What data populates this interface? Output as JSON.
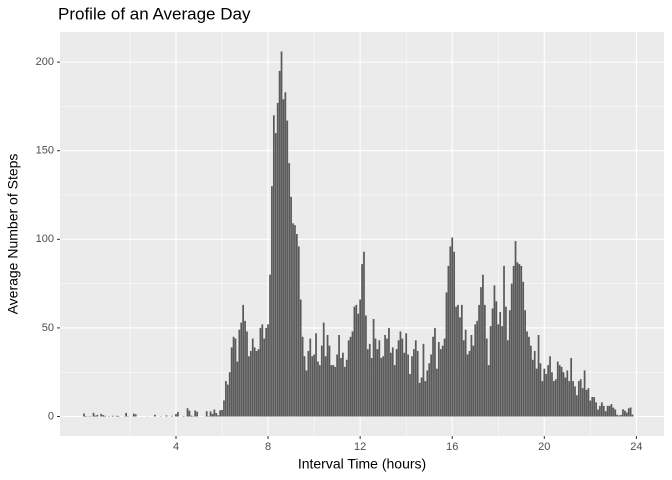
{
  "chart_data": {
    "type": "bar",
    "title": "Profile of an Average Day",
    "x_label": "Interval Time (hours)",
    "y_label": "Average Number of Steps",
    "color": "#595959",
    "grid": true,
    "xlim": [
      -1.04,
      25.2
    ],
    "xticks": [
      4,
      8,
      12,
      16,
      20,
      24
    ],
    "ylim": [
      -11,
      217
    ],
    "yticks": [
      0,
      50,
      100,
      150,
      200
    ],
    "x": [
      0,
      0.0833,
      0.1667,
      0.25,
      0.3333,
      0.4167,
      0.5,
      0.5833,
      0.6667,
      0.75,
      0.8333,
      0.9167,
      1,
      1.0833,
      1.1667,
      1.25,
      1.3333,
      1.4167,
      1.5,
      1.5833,
      1.6667,
      1.75,
      1.8333,
      1.9167,
      2,
      2.0833,
      2.1667,
      2.25,
      2.3333,
      2.4167,
      2.5,
      2.5833,
      2.6667,
      2.75,
      2.8333,
      2.9167,
      3,
      3.0833,
      3.1667,
      3.25,
      3.3333,
      3.4167,
      3.5,
      3.5833,
      3.6667,
      3.75,
      3.8333,
      3.9167,
      4,
      4.0833,
      4.1667,
      4.25,
      4.3333,
      4.4167,
      4.5,
      4.5833,
      4.6667,
      4.75,
      4.8333,
      4.9167,
      5,
      5.0833,
      5.1667,
      5.25,
      5.3333,
      5.4167,
      5.5,
      5.5833,
      5.6667,
      5.75,
      5.8333,
      5.9167,
      6,
      6.0833,
      6.1667,
      6.25,
      6.3333,
      6.4167,
      6.5,
      6.5833,
      6.6667,
      6.75,
      6.8333,
      6.9167,
      7,
      7.0833,
      7.1667,
      7.25,
      7.3333,
      7.4167,
      7.5,
      7.5833,
      7.6667,
      7.75,
      7.8333,
      7.9167,
      8,
      8.0833,
      8.1667,
      8.25,
      8.3333,
      8.4167,
      8.5,
      8.5833,
      8.6667,
      8.75,
      8.8333,
      8.9167,
      9,
      9.0833,
      9.1667,
      9.25,
      9.3333,
      9.4167,
      9.5,
      9.5833,
      9.6667,
      9.75,
      9.8333,
      9.9167,
      10,
      10.0833,
      10.1667,
      10.25,
      10.3333,
      10.4167,
      10.5,
      10.5833,
      10.6667,
      10.75,
      10.8333,
      10.9167,
      11,
      11.0833,
      11.1667,
      11.25,
      11.3333,
      11.4167,
      11.5,
      11.5833,
      11.6667,
      11.75,
      11.8333,
      11.9167,
      12,
      12.0833,
      12.1667,
      12.25,
      12.3333,
      12.4167,
      12.5,
      12.5833,
      12.6667,
      12.75,
      12.8333,
      12.9167,
      13,
      13.0833,
      13.1667,
      13.25,
      13.3333,
      13.4167,
      13.5,
      13.5833,
      13.6667,
      13.75,
      13.8333,
      13.9167,
      14,
      14.0833,
      14.1667,
      14.25,
      14.3333,
      14.4167,
      14.5,
      14.5833,
      14.6667,
      14.75,
      14.8333,
      14.9167,
      15,
      15.0833,
      15.1667,
      15.25,
      15.3333,
      15.4167,
      15.5,
      15.5833,
      15.6667,
      15.75,
      15.8333,
      15.9167,
      16,
      16.0833,
      16.1667,
      16.25,
      16.3333,
      16.4167,
      16.5,
      16.5833,
      16.6667,
      16.75,
      16.8333,
      16.9167,
      17,
      17.0833,
      17.1667,
      17.25,
      17.3333,
      17.4167,
      17.5,
      17.5833,
      17.6667,
      17.75,
      17.8333,
      17.9167,
      18,
      18.0833,
      18.1667,
      18.25,
      18.3333,
      18.4167,
      18.5,
      18.5833,
      18.6667,
      18.75,
      18.8333,
      18.9167,
      19,
      19.0833,
      19.1667,
      19.25,
      19.3333,
      19.4167,
      19.5,
      19.5833,
      19.6667,
      19.75,
      19.8333,
      19.9167,
      20,
      20.0833,
      20.1667,
      20.25,
      20.3333,
      20.4167,
      20.5,
      20.5833,
      20.6667,
      20.75,
      20.8333,
      20.9167,
      21,
      21.0833,
      21.1667,
      21.25,
      21.3333,
      21.4167,
      21.5,
      21.5833,
      21.6667,
      21.75,
      21.8333,
      21.9167,
      22,
      22.0833,
      22.1667,
      22.25,
      22.3333,
      22.4167,
      22.5,
      22.5833,
      22.6667,
      22.75,
      22.8333,
      22.9167,
      23,
      23.0833,
      23.1667,
      23.25,
      23.3333,
      23.4167,
      23.5,
      23.5833,
      23.6667,
      23.75,
      23.8333,
      23.9167
    ],
    "values": [
      1.7,
      0.3,
      0.1,
      0.2,
      0.1,
      2.1,
      0.5,
      0.9,
      0,
      1.5,
      0.8,
      0.4,
      0,
      0.2,
      0,
      0.4,
      0,
      0.4,
      0.3,
      0,
      0,
      0.1,
      2,
      0.2,
      0,
      0.1,
      1.6,
      1.2,
      0,
      0,
      0,
      0,
      0,
      0.1,
      0,
      0,
      0,
      1,
      0,
      0,
      0.2,
      0,
      0,
      0.6,
      0,
      0,
      0.4,
      0,
      1.4,
      2.6,
      0,
      0,
      0.3,
      0,
      4.7,
      3.3,
      0.5,
      0.2,
      3.4,
      2.7,
      0,
      0,
      0,
      0.1,
      3,
      0.2,
      2.9,
      1.5,
      3.9,
      2,
      0.7,
      3.5,
      3.7,
      9.1,
      20,
      18,
      25,
      39,
      45,
      44,
      31,
      49,
      53,
      63,
      54,
      48,
      34,
      37,
      44,
      39,
      37,
      38,
      50,
      52,
      44,
      50,
      52,
      80,
      130,
      170,
      160,
      177,
      195,
      206,
      179,
      183,
      167,
      143,
      124,
      109,
      108,
      103,
      96,
      66,
      45,
      34,
      26,
      37,
      44,
      34,
      35,
      47,
      31,
      29,
      40,
      53,
      34,
      46,
      40,
      29,
      29,
      28,
      35,
      46,
      33,
      36,
      28,
      32,
      43,
      45,
      48,
      62,
      63,
      58,
      66,
      86,
      93,
      57,
      38,
      41,
      33,
      55,
      44,
      38,
      43,
      33,
      34,
      46,
      44,
      50,
      36,
      39,
      29,
      38,
      43,
      48,
      44,
      36,
      47,
      35,
      24,
      34,
      38,
      43,
      37,
      19,
      22,
      41,
      20,
      26,
      30,
      35,
      45,
      50,
      27,
      42,
      38,
      40,
      44,
      70,
      85,
      96,
      101,
      93,
      62,
      63,
      56,
      63,
      43,
      49,
      35,
      37,
      46,
      40,
      52,
      54,
      63,
      73,
      80,
      63,
      44,
      29,
      51,
      61,
      74,
      65,
      52,
      59,
      51,
      85,
      62,
      43,
      60,
      75,
      85,
      99,
      87,
      86,
      85,
      76,
      60,
      48,
      45,
      40,
      32,
      37,
      27,
      46,
      30,
      20,
      27,
      24,
      29,
      34,
      25,
      20,
      21,
      31,
      29,
      28,
      25,
      22,
      26,
      20,
      33,
      20,
      17,
      12,
      20,
      21,
      16,
      26,
      15,
      16,
      9,
      11,
      11,
      8,
      4,
      6,
      8,
      6,
      3,
      6,
      6,
      7,
      5,
      4,
      1,
      0.6,
      0.9,
      4.1,
      3.3,
      2.2,
      4.6,
      5.1,
      1.1,
      0
    ]
  }
}
